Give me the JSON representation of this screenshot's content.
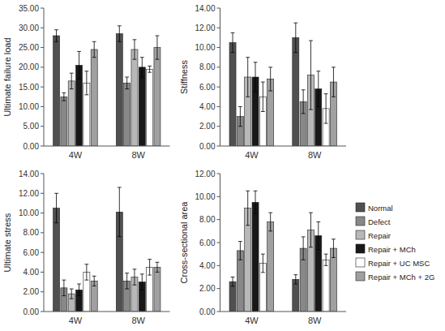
{
  "chart_data": [
    {
      "type": "bar",
      "ylabel": "Ultimate failure load",
      "categories": [
        "4W",
        "8W"
      ],
      "series": [
        {
          "color": "#505050",
          "values": [
            28.0,
            28.5
          ],
          "errors": [
            1.5,
            2.0
          ]
        },
        {
          "color": "#888888",
          "values": [
            12.5,
            16.0
          ],
          "errors": [
            1.0,
            1.5
          ]
        },
        {
          "color": "#b8b8b8",
          "values": [
            16.5,
            24.5
          ],
          "errors": [
            2.0,
            2.5
          ]
        },
        {
          "color": "#181818",
          "values": [
            20.5,
            20.0
          ],
          "errors": [
            3.5,
            2.5
          ]
        },
        {
          "color": "#ffffff",
          "values": [
            16.0,
            19.5
          ],
          "errors": [
            3.0,
            0.8
          ]
        },
        {
          "color": "#a0a0a0",
          "values": [
            24.5,
            25.0
          ],
          "errors": [
            2.0,
            3.0
          ]
        }
      ],
      "ylim": [
        0,
        35
      ],
      "yticks": [
        {
          "value": 0,
          "label": "0.00"
        },
        {
          "value": 5,
          "label": "5.00"
        },
        {
          "value": 10,
          "label": "10.00"
        },
        {
          "value": 15,
          "label": "15.00"
        },
        {
          "value": 20,
          "label": "20.00"
        },
        {
          "value": 25,
          "label": "25.00"
        },
        {
          "value": 30,
          "label": "30.00"
        },
        {
          "value": 35,
          "label": "35.00"
        }
      ],
      "grid": false
    },
    {
      "type": "bar",
      "ylabel": "Stiffness",
      "categories": [
        "4W",
        "8W"
      ],
      "series": [
        {
          "color": "#505050",
          "values": [
            10.5,
            11.0
          ],
          "errors": [
            1.0,
            1.5
          ]
        },
        {
          "color": "#888888",
          "values": [
            3.0,
            4.5
          ],
          "errors": [
            1.0,
            1.2
          ]
        },
        {
          "color": "#b8b8b8",
          "values": [
            7.0,
            7.2
          ],
          "errors": [
            2.0,
            3.5
          ]
        },
        {
          "color": "#181818",
          "values": [
            7.0,
            5.8
          ],
          "errors": [
            1.5,
            1.8
          ]
        },
        {
          "color": "#ffffff",
          "values": [
            5.0,
            3.8
          ],
          "errors": [
            1.5,
            1.5
          ]
        },
        {
          "color": "#a0a0a0",
          "values": [
            6.8,
            6.5
          ],
          "errors": [
            1.2,
            1.5
          ]
        }
      ],
      "ylim": [
        0,
        14
      ],
      "yticks": [
        {
          "value": 0,
          "label": "0.00"
        },
        {
          "value": 2,
          "label": "2.00"
        },
        {
          "value": 4,
          "label": "4.00"
        },
        {
          "value": 6,
          "label": "6.00"
        },
        {
          "value": 8,
          "label": "8.00"
        },
        {
          "value": 10,
          "label": "10.00"
        },
        {
          "value": 12,
          "label": "12.00"
        },
        {
          "value": 14,
          "label": "14.00"
        }
      ],
      "grid": false
    },
    {
      "type": "bar",
      "ylabel": "Ultimate stress",
      "categories": [
        "4W",
        "8W"
      ],
      "series": [
        {
          "color": "#505050",
          "values": [
            10.5,
            10.1
          ],
          "errors": [
            1.5,
            2.5
          ]
        },
        {
          "color": "#888888",
          "values": [
            2.4,
            3.1
          ],
          "errors": [
            0.8,
            0.8
          ]
        },
        {
          "color": "#b8b8b8",
          "values": [
            1.8,
            3.5
          ],
          "errors": [
            0.5,
            0.8
          ]
        },
        {
          "color": "#181818",
          "values": [
            2.2,
            3.0
          ],
          "errors": [
            0.6,
            0.8
          ]
        },
        {
          "color": "#ffffff",
          "values": [
            4.0,
            4.5
          ],
          "errors": [
            0.8,
            0.8
          ]
        },
        {
          "color": "#a0a0a0",
          "values": [
            3.1,
            4.5
          ],
          "errors": [
            0.5,
            0.5
          ]
        }
      ],
      "ylim": [
        0,
        14
      ],
      "yticks": [
        {
          "value": 0,
          "label": "0.00"
        },
        {
          "value": 2,
          "label": "2.00"
        },
        {
          "value": 4,
          "label": "4.00"
        },
        {
          "value": 6,
          "label": "6.00"
        },
        {
          "value": 8,
          "label": "8.00"
        },
        {
          "value": 10,
          "label": "10.00"
        },
        {
          "value": 12,
          "label": "12.00"
        },
        {
          "value": 14,
          "label": "14.00"
        }
      ],
      "grid": false
    },
    {
      "type": "bar",
      "ylabel": "Cross-sectional area",
      "categories": [
        "4W",
        "8W"
      ],
      "series": [
        {
          "name": "Normal",
          "color": "#505050",
          "values": [
            2.6,
            2.8
          ],
          "errors": [
            0.4,
            0.4
          ]
        },
        {
          "name": "Defect",
          "color": "#888888",
          "values": [
            5.3,
            5.5
          ],
          "errors": [
            0.8,
            1.0
          ]
        },
        {
          "name": "Repair",
          "color": "#b8b8b8",
          "values": [
            9.0,
            7.1
          ],
          "errors": [
            1.5,
            1.5
          ]
        },
        {
          "name": "Repair + MCh",
          "color": "#181818",
          "values": [
            9.5,
            6.6
          ],
          "errors": [
            1.0,
            1.2
          ]
        },
        {
          "name": "Repair + UC MSC",
          "color": "#ffffff",
          "values": [
            4.2,
            4.5
          ],
          "errors": [
            0.8,
            0.5
          ]
        },
        {
          "name": "Repair + MCh + 2G",
          "color": "#a0a0a0",
          "values": [
            7.8,
            5.5
          ],
          "errors": [
            0.8,
            0.8
          ]
        }
      ],
      "ylim": [
        0,
        12
      ],
      "yticks": [
        {
          "value": 0,
          "label": "0.00"
        },
        {
          "value": 2,
          "label": "2.00"
        },
        {
          "value": 4,
          "label": "4.00"
        },
        {
          "value": 6,
          "label": "6.00"
        },
        {
          "value": 8,
          "label": "8.00"
        },
        {
          "value": 10,
          "label": "10.00"
        },
        {
          "value": 12,
          "label": "12.00"
        }
      ],
      "grid": false,
      "legend": "right"
    }
  ]
}
